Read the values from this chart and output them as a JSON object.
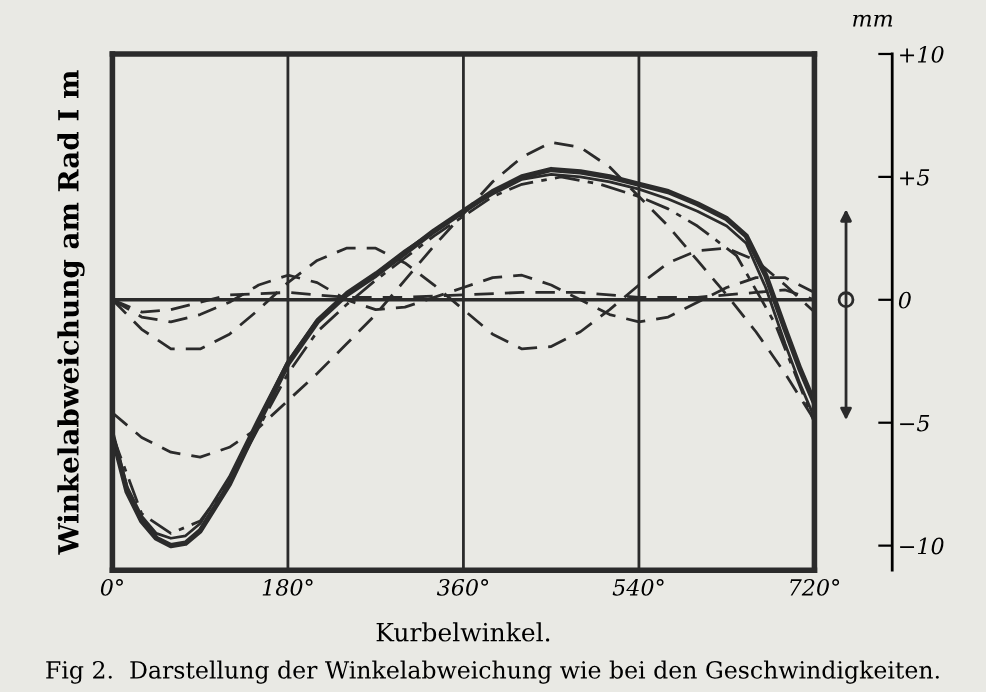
{
  "chart_data": {
    "type": "line",
    "xlabel": "Kurbelwinkel.",
    "ylabel": "Winkelabweichung am Rad I m",
    "annotations": [
      "mm",
      "Fig 2.  Darstellung der Winkelabweichung wie bei den Geschwindigkeiten."
    ],
    "xlim": [
      0,
      720
    ],
    "xticks": [
      {
        "value": 0,
        "label": "0°"
      },
      {
        "value": 180,
        "label": "180°"
      },
      {
        "value": 360,
        "label": "360°"
      },
      {
        "value": 540,
        "label": "540°"
      },
      {
        "value": 720,
        "label": "720°"
      }
    ],
    "ylim": [
      -11,
      10
    ],
    "yticks": [
      {
        "value": 10,
        "label": "+10"
      },
      {
        "value": 5,
        "label": "+5"
      },
      0,
      {
        "value": -5,
        "label": "−5"
      },
      {
        "value": -10,
        "label": "−10"
      }
    ],
    "grid": "x",
    "ref_lines": [
      {
        "axis": "y",
        "value": 0,
        "color": "#2b2b2b",
        "line_style": "solid"
      }
    ],
    "series": [
      {
        "color": "#2b2b2b",
        "line_style": "solid",
        "x": [
          0,
          15,
          30,
          45,
          60,
          75,
          90,
          120,
          150,
          180,
          210,
          240,
          270,
          300,
          330,
          360,
          390,
          420,
          450,
          480,
          510,
          540,
          570,
          600,
          630,
          650,
          670,
          690,
          705,
          720
        ],
        "values": [
          -5.5,
          -7.8,
          -9.0,
          -9.7,
          -10.0,
          -9.9,
          -9.4,
          -7.5,
          -5.0,
          -2.6,
          -0.9,
          0.2,
          1.0,
          1.9,
          2.8,
          3.6,
          4.4,
          5.0,
          5.3,
          5.2,
          5.0,
          4.7,
          4.4,
          3.9,
          3.3,
          2.6,
          1.0,
          -1.2,
          -2.8,
          -4.2
        ]
      },
      {
        "color": "#2b2b2b",
        "line_style": "solid",
        "x": [
          0,
          15,
          30,
          45,
          60,
          75,
          90,
          120,
          150,
          180,
          210,
          240,
          270,
          300,
          330,
          360,
          390,
          420,
          450,
          480,
          510,
          540,
          570,
          600,
          630,
          650,
          670,
          690,
          705,
          720
        ],
        "values": [
          -5.4,
          -7.6,
          -8.8,
          -9.5,
          -9.7,
          -9.6,
          -9.1,
          -7.2,
          -4.8,
          -2.5,
          -0.8,
          0.3,
          1.1,
          2.0,
          2.8,
          3.6,
          4.3,
          4.9,
          5.1,
          5.0,
          4.8,
          4.5,
          4.1,
          3.6,
          3.0,
          2.3,
          0.5,
          -1.8,
          -3.4,
          -4.8
        ]
      },
      {
        "color": "#2b2b2b",
        "line_style": "dashdot",
        "x": [
          0,
          30,
          60,
          90,
          120,
          150,
          180,
          210,
          240,
          270,
          300,
          330,
          360,
          390,
          420,
          460,
          500,
          540,
          570,
          600,
          640,
          680,
          720
        ],
        "values": [
          -5.5,
          -8.7,
          -9.5,
          -9.0,
          -7.4,
          -5.2,
          -3.0,
          -1.3,
          -0.2,
          0.8,
          1.7,
          2.6,
          3.4,
          4.2,
          4.7,
          5.0,
          4.7,
          4.2,
          3.7,
          3.0,
          1.8,
          -1.0,
          -5.0
        ]
      },
      {
        "color": "#2b2b2b",
        "line_style": "dashed",
        "x": [
          0,
          30,
          60,
          90,
          120,
          150,
          180,
          210,
          240,
          270,
          300,
          330,
          360,
          390,
          420,
          450,
          480,
          510,
          540,
          570,
          600,
          630,
          660,
          690,
          720
        ],
        "values": [
          -4.6,
          -5.6,
          -6.2,
          -6.4,
          -6.0,
          -5.2,
          -4.1,
          -3.0,
          -1.8,
          -0.6,
          0.8,
          2.2,
          3.5,
          4.8,
          5.8,
          6.4,
          6.2,
          5.4,
          4.2,
          3.0,
          1.6,
          0.2,
          -1.3,
          -3.0,
          -4.9
        ]
      },
      {
        "color": "#2b2b2b",
        "line_style": "dashed",
        "x": [
          0,
          30,
          60,
          90,
          120,
          150,
          180,
          210,
          240,
          270,
          300,
          330,
          360,
          390,
          420,
          450,
          480,
          510,
          540,
          570,
          600,
          630,
          660,
          690,
          720
        ],
        "values": [
          0,
          -1.2,
          -2.0,
          -2.0,
          -1.4,
          -0.4,
          0.7,
          1.6,
          2.1,
          2.1,
          1.5,
          0.6,
          -0.4,
          -1.4,
          -2.0,
          -1.9,
          -1.3,
          -0.4,
          0.6,
          1.5,
          2.0,
          2.1,
          1.6,
          0.6,
          -0.5
        ]
      },
      {
        "color": "#2b2b2b",
        "line_style": "dashed",
        "x": [
          0,
          30,
          60,
          90,
          120,
          150,
          180,
          210,
          240,
          270,
          300,
          330,
          360,
          390,
          420,
          450,
          480,
          510,
          540,
          570,
          600,
          630,
          660,
          690,
          720
        ],
        "values": [
          0,
          -0.7,
          -0.9,
          -0.6,
          -0.1,
          0.6,
          1.0,
          0.7,
          0.0,
          -0.4,
          -0.3,
          0.1,
          0.5,
          0.9,
          1.0,
          0.6,
          0.0,
          -0.6,
          -0.9,
          -0.7,
          -0.1,
          0.5,
          0.9,
          0.9,
          0.3
        ]
      },
      {
        "color": "#2b2b2b",
        "line_style": "dashed",
        "x": [
          0,
          30,
          60,
          90,
          120,
          180,
          240,
          300,
          360,
          420,
          480,
          540,
          600,
          660,
          690,
          720
        ],
        "values": [
          0,
          -0.5,
          -0.4,
          -0.1,
          0.2,
          0.3,
          0.1,
          0.1,
          0.2,
          0.3,
          0.3,
          0.1,
          0.1,
          0.3,
          0.4,
          0
        ]
      }
    ]
  }
}
